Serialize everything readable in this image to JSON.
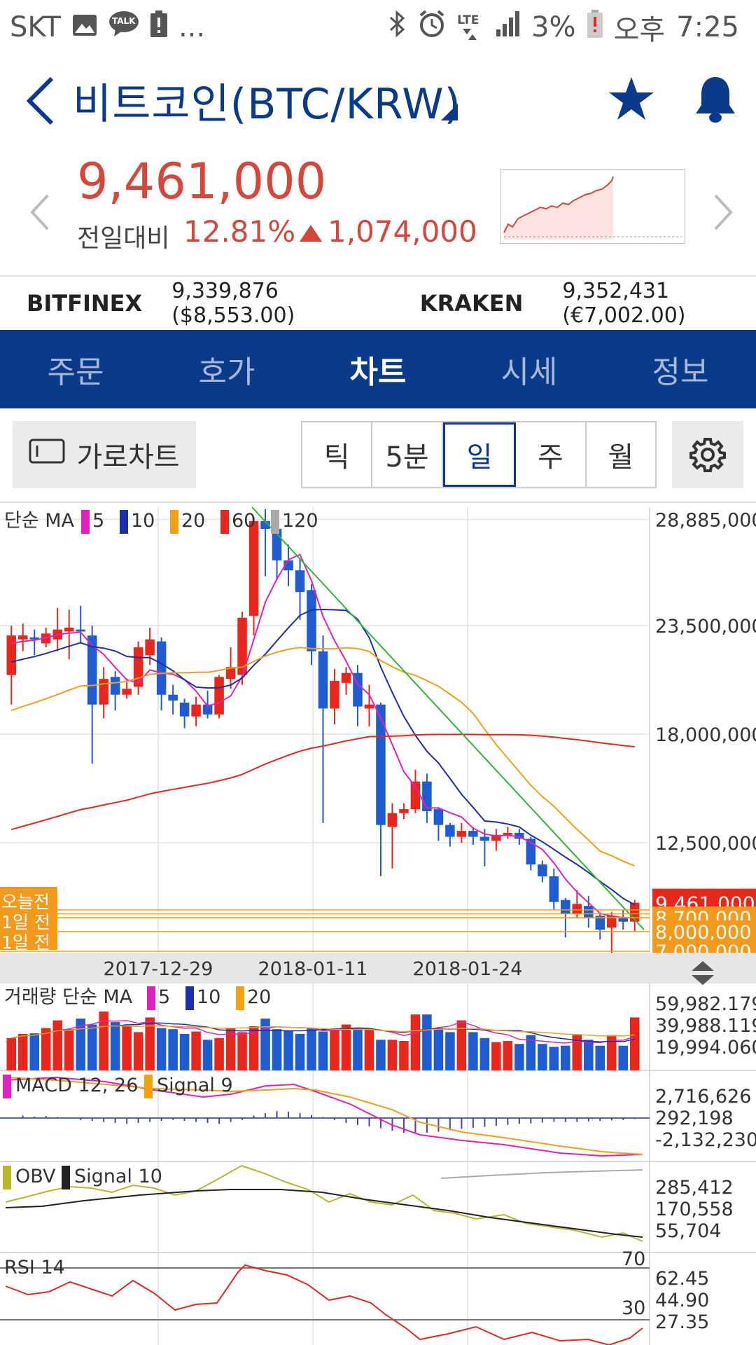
{
  "status": {
    "carrier": "SKT",
    "talk": "TALK",
    "dots": "...",
    "lte": "LTE",
    "battery": "3%",
    "ampm": "오후",
    "time": "7:25"
  },
  "header": {
    "title": "비트코인(BTC/KRW)"
  },
  "price": {
    "current": "9,461,000",
    "change_label": "전일대비",
    "change_pct": "12.81%",
    "change_amount": "1,074,000"
  },
  "exchanges": [
    {
      "name": "BITFINEX",
      "value": "9,339,876 ($8,553.00)"
    },
    {
      "name": "KRAKEN",
      "value": "9,352,431 (€7,002.00)"
    }
  ],
  "tabs": [
    {
      "label": "주문"
    },
    {
      "label": "호가"
    },
    {
      "label": "차트"
    },
    {
      "label": "시세"
    },
    {
      "label": "정보"
    }
  ],
  "toolbar": {
    "landscape_label": "가로차트",
    "periods": [
      {
        "label": "틱"
      },
      {
        "label": "5분"
      },
      {
        "label": "일"
      },
      {
        "label": "주"
      },
      {
        "label": "월"
      }
    ]
  },
  "colors": {
    "brand": "#0a3a8a",
    "up": "#e8261c",
    "down": "#1f5bd1",
    "accent": "#d4473a",
    "orange": "#f39a1c"
  },
  "chart_data": [
    {
      "type": "candlestick",
      "title": "",
      "legend": {
        "prefix": "단순 MA",
        "ma": [
          {
            "period": "5",
            "color": "#e020c0"
          },
          {
            "period": "10",
            "color": "#1a2fb0"
          },
          {
            "period": "20",
            "color": "#f3a012"
          },
          {
            "period": "60",
            "color": "#e8261c"
          },
          {
            "period": "120",
            "color": "#aaaaaa"
          }
        ]
      },
      "y_ticks": [
        "28,885,000",
        "23,500,000",
        "18,000,000",
        "12,500,000"
      ],
      "ylim": [
        7000000,
        29500000
      ],
      "x_ticks": [
        "2017-12-29",
        "2018-01-11",
        "2018-01-24"
      ],
      "current_price_label": "9,461,000",
      "price_levels": [
        "8,700,000",
        "8,000,000",
        "7,000,000"
      ],
      "left_labels": [
        "오늘전",
        "1일 전",
        "1일 전"
      ],
      "candles": [
        [
          21000000,
          23000000,
          19500000,
          23500000
        ],
        [
          22800000,
          23000000,
          22200000,
          23600000
        ],
        [
          22900000,
          22800000,
          22000000,
          23300000
        ],
        [
          22600000,
          23100000,
          22400000,
          23400000
        ],
        [
          22800000,
          23300000,
          22200000,
          24400000
        ],
        [
          23200000,
          23400000,
          21800000,
          24300000
        ],
        [
          23300000,
          23200000,
          22600000,
          24500000
        ],
        [
          23000000,
          19500000,
          16500000,
          23500000
        ],
        [
          19500000,
          20800000,
          18800000,
          21400000
        ],
        [
          20900000,
          20000000,
          19200000,
          21200000
        ],
        [
          20000000,
          20300000,
          19800000,
          20800000
        ],
        [
          20400000,
          22400000,
          20000000,
          22700000
        ],
        [
          22000000,
          22800000,
          21500000,
          23400000
        ],
        [
          22700000,
          20000000,
          19200000,
          22900000
        ],
        [
          20000000,
          19700000,
          19000000,
          20500000
        ],
        [
          19600000,
          18900000,
          18300000,
          19800000
        ],
        [
          18900000,
          19500000,
          18400000,
          19900000
        ],
        [
          19500000,
          19000000,
          18800000,
          20200000
        ],
        [
          19000000,
          20900000,
          18800000,
          21000000
        ],
        [
          20800000,
          21400000,
          20300000,
          22400000
        ],
        [
          21000000,
          23900000,
          20500000,
          24200000
        ],
        [
          24000000,
          28800000,
          23000000,
          29000000
        ],
        [
          28800000,
          28400000,
          26000000,
          29400000
        ],
        [
          28400000,
          26800000,
          25800000,
          29000000
        ],
        [
          26800000,
          26300000,
          25500000,
          27600000
        ],
        [
          26300000,
          25200000,
          23800000,
          26900000
        ],
        [
          25300000,
          22200000,
          21500000,
          25600000
        ],
        [
          22200000,
          19300000,
          13500000,
          23000000
        ],
        [
          19300000,
          20700000,
          18500000,
          21300000
        ],
        [
          20600000,
          21100000,
          20000000,
          21400000
        ],
        [
          21100000,
          19400000,
          18400000,
          21500000
        ],
        [
          19300000,
          19500000,
          18400000,
          20500000
        ],
        [
          19500000,
          13400000,
          10800000,
          19600000
        ],
        [
          13300000,
          14000000,
          11200000,
          14500000
        ],
        [
          14000000,
          14200000,
          13700000,
          14500000
        ],
        [
          14200000,
          15600000,
          14000000,
          16200000
        ],
        [
          15600000,
          14100000,
          13500000,
          16000000
        ],
        [
          14200000,
          13400000,
          12600000,
          14300000
        ],
        [
          13400000,
          12800000,
          12300000,
          13500000
        ],
        [
          12800000,
          13100000,
          12500000,
          13500000
        ],
        [
          13100000,
          12800000,
          12400000,
          13300000
        ],
        [
          12800000,
          12600000,
          11300000,
          13200000
        ],
        [
          12600000,
          12900000,
          12100000,
          13200000
        ],
        [
          12900000,
          13000000,
          12700000,
          13300000
        ],
        [
          13000000,
          12700000,
          12400000,
          13200000
        ],
        [
          12700000,
          11400000,
          11100000,
          12800000
        ],
        [
          11400000,
          10800000,
          10500000,
          11600000
        ],
        [
          10800000,
          9500000,
          9100000,
          11200000
        ],
        [
          9600000,
          8900000,
          7700000,
          9700000
        ],
        [
          8900000,
          9400000,
          8700000,
          10100000
        ],
        [
          9300000,
          8700000,
          8200000,
          9800000
        ],
        [
          8800000,
          8100000,
          7600000,
          8900000
        ],
        [
          8200000,
          8800000,
          6900000,
          9000000
        ],
        [
          8700000,
          8500000,
          8100000,
          9100000
        ],
        [
          8500000,
          9461000,
          8000000,
          9600000
        ]
      ]
    },
    {
      "type": "bar",
      "title": "",
      "legend": {
        "prefix": "거래량 단순 MA",
        "ma": [
          {
            "period": "5",
            "color": "#e020c0"
          },
          {
            "period": "10",
            "color": "#1a2fb0"
          },
          {
            "period": "20",
            "color": "#f3a012"
          }
        ]
      },
      "y_ticks": [
        "59,982.179",
        "39,988.119",
        "19,994.060"
      ]
    },
    {
      "type": "line",
      "title": "",
      "legend": {
        "items": [
          {
            "name": "MACD 12, 26",
            "color": "#e020c0"
          },
          {
            "name": "Signal 9",
            "color": "#f3a012"
          }
        ]
      },
      "y_ticks": [
        "2,716,626",
        "292,198",
        "-2,132,230"
      ]
    },
    {
      "type": "line",
      "title": "",
      "legend": {
        "items": [
          {
            "name": "OBV",
            "color": "#b8b82a"
          },
          {
            "name": "Signal 10",
            "color": "#222222"
          }
        ]
      },
      "y_ticks": [
        "285,412",
        "170,558",
        "55,704"
      ]
    },
    {
      "type": "line",
      "title": "",
      "legend": {
        "items": [
          {
            "name": "RSI 14",
            "color": "#e8261c"
          }
        ]
      },
      "y_ticks": [
        "62.45",
        "44.90",
        "27.35"
      ],
      "levels": [
        "70",
        "30"
      ]
    }
  ]
}
